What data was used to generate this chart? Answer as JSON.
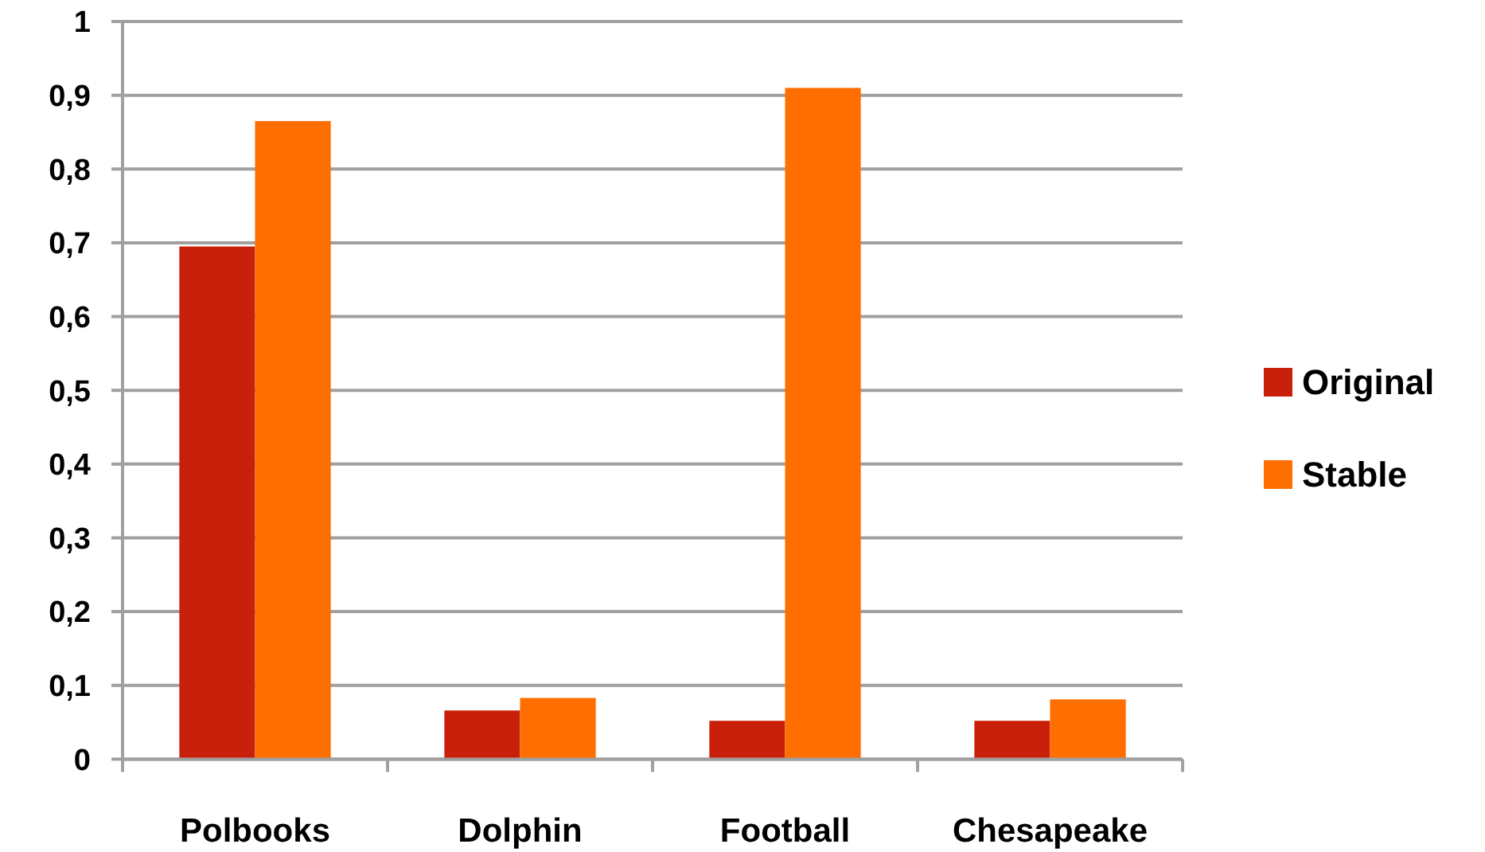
{
  "chart_data": {
    "type": "bar",
    "categories": [
      "Polbooks",
      "Dolphin",
      "Football",
      "Chesapeake"
    ],
    "series": [
      {
        "name": "Original",
        "color": "#c8200a",
        "values": [
          0.695,
          0.066,
          0.052,
          0.052
        ]
      },
      {
        "name": "Stable",
        "color": "#ff6e00",
        "values": [
          0.865,
          0.083,
          0.91,
          0.081
        ]
      }
    ],
    "ylim": [
      0,
      1
    ],
    "yticks": [
      0,
      {
        "value": 0.1,
        "label": "0,1"
      },
      {
        "value": 0.2,
        "label": "0,2"
      },
      {
        "value": 0.3,
        "label": "0,3"
      },
      {
        "value": 0.4,
        "label": "0,4"
      },
      {
        "value": 0.5,
        "label": "0,5"
      },
      {
        "value": 0.6,
        "label": "0,6"
      },
      {
        "value": 0.7,
        "label": "0,7"
      },
      {
        "value": 0.8,
        "label": "0,8"
      },
      {
        "value": 0.9,
        "label": "0,9"
      },
      1
    ],
    "grid": "y",
    "legend": "right"
  }
}
